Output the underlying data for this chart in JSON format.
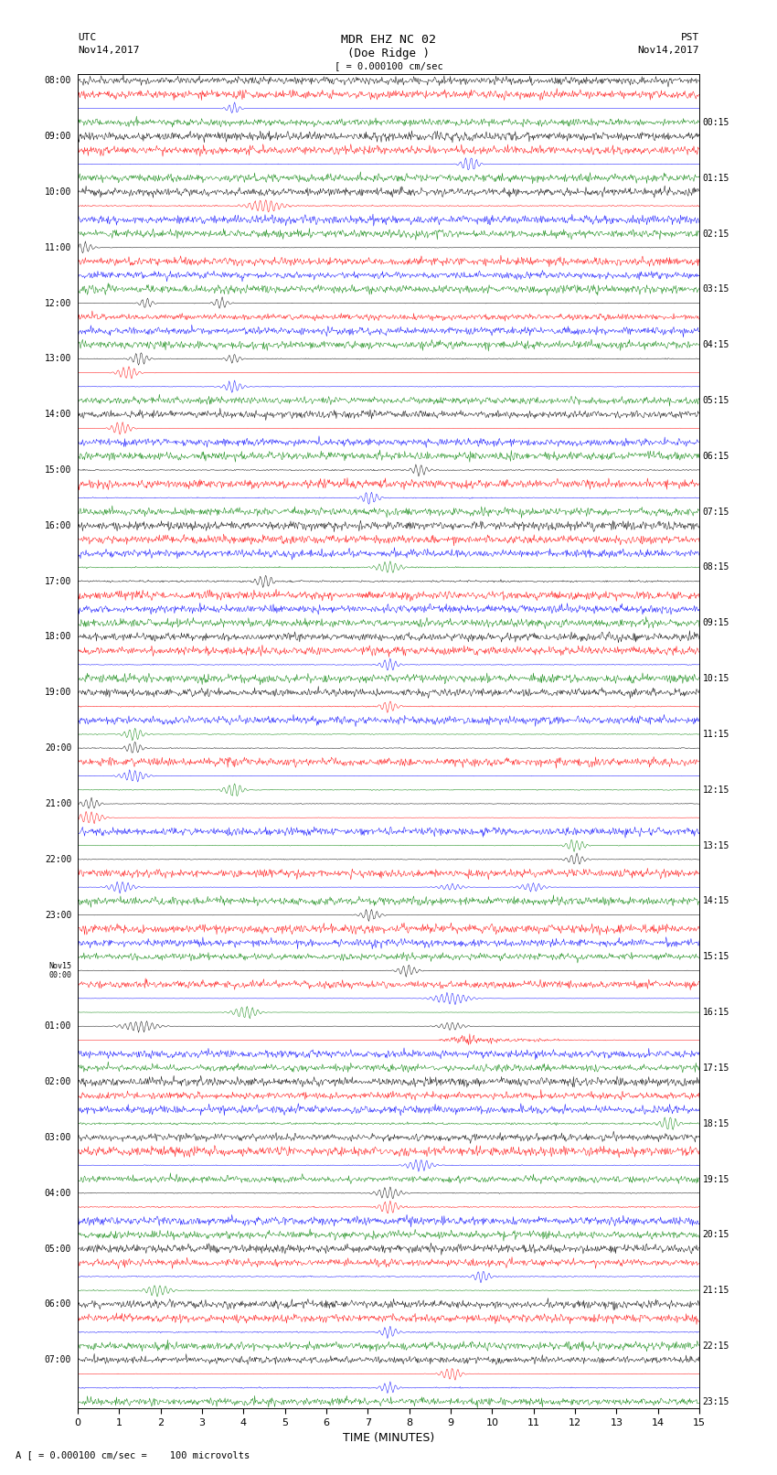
{
  "title_line1": "MDR EHZ NC 02",
  "title_line2": "(Doe Ridge )",
  "scale_label": "[ = 0.000100 cm/sec",
  "bottom_label": "A [ = 0.000100 cm/sec =    100 microvolts",
  "xlabel": "TIME (MINUTES)",
  "utc_label1": "UTC",
  "utc_label2": "Nov14,2017",
  "pst_label1": "PST",
  "pst_label2": "Nov14,2017",
  "left_times": [
    "08:00",
    "09:00",
    "10:00",
    "11:00",
    "12:00",
    "13:00",
    "14:00",
    "15:00",
    "16:00",
    "17:00",
    "18:00",
    "19:00",
    "20:00",
    "21:00",
    "22:00",
    "23:00",
    "Nov15\n00:00",
    "01:00",
    "02:00",
    "03:00",
    "04:00",
    "05:00",
    "06:00",
    "07:00"
  ],
  "right_times": [
    "00:15",
    "01:15",
    "02:15",
    "03:15",
    "04:15",
    "05:15",
    "06:15",
    "07:15",
    "08:15",
    "09:15",
    "10:15",
    "11:15",
    "12:15",
    "13:15",
    "14:15",
    "15:15",
    "16:15",
    "17:15",
    "18:15",
    "19:15",
    "20:15",
    "21:15",
    "22:15",
    "23:15"
  ],
  "n_rows": 24,
  "n_traces_per_row": 4,
  "colors": [
    "black",
    "red",
    "blue",
    "green"
  ],
  "n_points": 900,
  "x_ticks": [
    0,
    1,
    2,
    3,
    4,
    5,
    6,
    7,
    8,
    9,
    10,
    11,
    12,
    13,
    14,
    15
  ],
  "background_color": "white",
  "fig_width": 8.5,
  "fig_height": 16.13
}
